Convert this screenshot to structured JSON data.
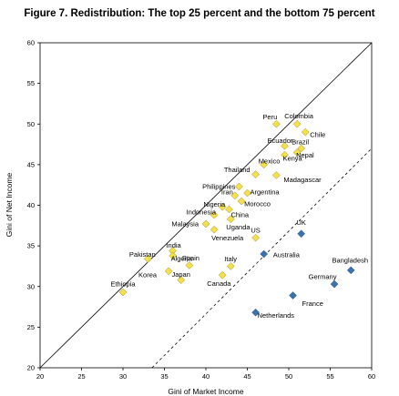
{
  "chart_data": {
    "type": "scatter",
    "title": "Figure 7. Redistribution: The top 25 percent and the bottom 75 percent",
    "xlabel": "Gini of Market Income",
    "ylabel": "Gini of Net Income",
    "xlim": [
      20,
      60
    ],
    "ylim": [
      20,
      60
    ],
    "xticks": [
      20,
      25,
      30,
      35,
      40,
      45,
      50,
      55,
      60
    ],
    "yticks": [
      20,
      25,
      30,
      35,
      40,
      45,
      50,
      55,
      60
    ],
    "grid": false,
    "legend": "none",
    "reference_lines": [
      {
        "style": "solid",
        "points": [
          [
            20,
            20
          ],
          [
            60,
            60
          ]
        ]
      },
      {
        "style": "dashed",
        "points": [
          [
            33.5,
            20
          ],
          [
            60,
            47
          ]
        ]
      }
    ],
    "series": [
      {
        "color": "#f4e04d",
        "points": [
          {
            "label": "Peru",
            "x": 48.5,
            "y": 50.0
          },
          {
            "label": "Colombia",
            "x": 51.0,
            "y": 50.0
          },
          {
            "label": "Chile",
            "x": 52.0,
            "y": 49.0
          },
          {
            "label": "Ecuador",
            "x": 49.5,
            "y": 47.3
          },
          {
            "label": "Brazil",
            "x": 51.5,
            "y": 47.0
          },
          {
            "label": "Nepal",
            "x": 51.0,
            "y": 46.5
          },
          {
            "label": "Kenya",
            "x": 49.5,
            "y": 46.2
          },
          {
            "label": "Mexico",
            "x": 47.0,
            "y": 45.0
          },
          {
            "label": "Thailand",
            "x": 46.0,
            "y": 43.8
          },
          {
            "label": "Madagascar",
            "x": 48.5,
            "y": 43.7
          },
          {
            "label": "Philippines",
            "x": 44.0,
            "y": 42.3
          },
          {
            "label": "Argentina",
            "x": 45.0,
            "y": 41.5
          },
          {
            "label": "Iran",
            "x": 43.5,
            "y": 41.2
          },
          {
            "label": "Morocco",
            "x": 44.3,
            "y": 40.5
          },
          {
            "label": "Nigeria",
            "x": 42.0,
            "y": 39.8
          },
          {
            "label": "China",
            "x": 42.8,
            "y": 39.5
          },
          {
            "label": "Indonesia",
            "x": 41.0,
            "y": 38.8
          },
          {
            "label": "Uganda",
            "x": 43.0,
            "y": 38.3
          },
          {
            "label": "Malaysia",
            "x": 40.0,
            "y": 37.7
          },
          {
            "label": "Venezuela",
            "x": 41.0,
            "y": 37.0
          },
          {
            "label": "US",
            "x": 46.0,
            "y": 36.0
          },
          {
            "label": "India",
            "x": 36.0,
            "y": 34.4
          },
          {
            "label": "Pakistan",
            "x": 33.0,
            "y": 33.4
          },
          {
            "label": "Algeria",
            "x": 36.0,
            "y": 33.8
          },
          {
            "label": "Spain",
            "x": 38.0,
            "y": 32.6
          },
          {
            "label": "Italy",
            "x": 43.0,
            "y": 32.5
          },
          {
            "label": "Korea",
            "x": 35.5,
            "y": 31.9
          },
          {
            "label": "Japan",
            "x": 37.0,
            "y": 30.8
          },
          {
            "label": "Canada",
            "x": 42.0,
            "y": 31.4
          },
          {
            "label": "Ethiopia",
            "x": 30.0,
            "y": 29.3
          }
        ]
      },
      {
        "color": "#3a72b0",
        "points": [
          {
            "label": "UK",
            "x": 51.5,
            "y": 36.5
          },
          {
            "label": "Australia",
            "x": 47.0,
            "y": 34.0
          },
          {
            "label": "Bangladesh",
            "x": 57.5,
            "y": 32.0
          },
          {
            "label": "Germany",
            "x": 55.5,
            "y": 30.3
          },
          {
            "label": "France",
            "x": 50.5,
            "y": 28.9
          },
          {
            "label": "Netherlands",
            "x": 46.0,
            "y": 26.8
          }
        ]
      }
    ]
  }
}
